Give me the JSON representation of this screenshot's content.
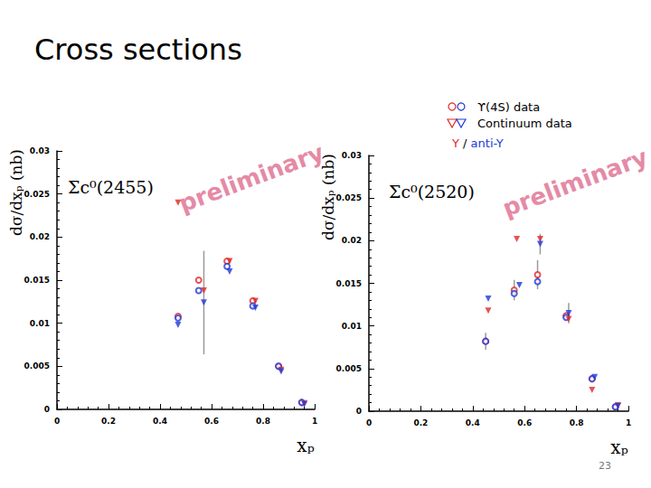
{
  "slide_title": "Cross sections",
  "page_number": 23,
  "legend_note": "Y / anti-Y",
  "chart_data": [
    {
      "type": "scatter",
      "title": "Σc⁰(2455)",
      "annotation": "preliminary",
      "x_label": "xₚ",
      "y_label": "dσ/dxₚ (nb)",
      "xlim": [
        0,
        1
      ],
      "xticks": [
        0,
        0.2,
        0.4,
        0.6,
        0.8,
        1
      ],
      "ylim": [
        0,
        0.03
      ],
      "yticks": [
        0,
        0.005,
        0.01,
        0.015,
        0.02,
        0.025,
        0.03
      ],
      "series": [
        {
          "name": "ϒ(4S) data",
          "color": "#e02828",
          "marker": "circle",
          "x": [
            0.47,
            0.55,
            0.66,
            0.76,
            0.86,
            0.95
          ],
          "values": [
            0.0108,
            0.015,
            0.0172,
            0.0126,
            0.005,
            0.0008
          ],
          "errors": [
            null,
            null,
            null,
            null,
            null,
            null
          ]
        },
        {
          "name": "ϒ(4S) data",
          "color": "#2038d8",
          "marker": "circle",
          "x": [
            0.47,
            0.55,
            0.66,
            0.76,
            0.86,
            0.95
          ],
          "values": [
            0.0106,
            0.0138,
            0.0166,
            0.012,
            0.005,
            0.0008
          ],
          "errors": [
            null,
            null,
            null,
            null,
            null,
            null
          ]
        },
        {
          "name": "Continuum data",
          "color": "#e02828",
          "marker": "triangle_down",
          "x": [
            0.47,
            0.57,
            0.67,
            0.77,
            0.87,
            0.96
          ],
          "values": [
            0.024,
            0.0138,
            0.0172,
            0.0126,
            0.0046,
            0.0007
          ],
          "errors": [
            null,
            null,
            null,
            null,
            null,
            null
          ]
        },
        {
          "name": "Continuum data",
          "color": "#2038d8",
          "marker": "triangle_down",
          "x": [
            0.47,
            0.57,
            0.67,
            0.77,
            0.87,
            0.96
          ],
          "values": [
            0.0098,
            0.0124,
            0.016,
            0.0118,
            0.0044,
            0.0006
          ],
          "errors": [
            null,
            0.006,
            null,
            null,
            null,
            null
          ]
        }
      ]
    },
    {
      "type": "scatter",
      "title": "Σc⁰(2520)",
      "annotation": "preliminary",
      "x_label": "xₚ",
      "y_label": "dσ/dxₚ (nb)",
      "xlim": [
        0,
        1
      ],
      "xticks": [
        0,
        0.2,
        0.4,
        0.6,
        0.8,
        1
      ],
      "ylim": [
        0,
        0.03
      ],
      "yticks": [
        0,
        0.005,
        0.01,
        0.015,
        0.02,
        0.025,
        0.03
      ],
      "series": [
        {
          "name": "ϒ(4S) data",
          "color": "#e02828",
          "marker": "circle",
          "x": [
            0.45,
            0.56,
            0.65,
            0.76,
            0.86,
            0.95
          ],
          "values": [
            0.0082,
            0.0142,
            0.016,
            0.0112,
            0.0038,
            0.0005
          ],
          "errors": [
            0.001,
            0.0012,
            0.0017,
            null,
            null,
            null
          ]
        },
        {
          "name": "ϒ(4S) data",
          "color": "#2038d8",
          "marker": "circle",
          "x": [
            0.45,
            0.56,
            0.65,
            0.76,
            0.86,
            0.95
          ],
          "values": [
            0.0082,
            0.0138,
            0.0152,
            0.011,
            0.0038,
            0.0005
          ],
          "errors": [
            null,
            null,
            null,
            null,
            null,
            null
          ]
        },
        {
          "name": "Continuum data",
          "color": "#e02828",
          "marker": "triangle_down",
          "x": [
            0.46,
            0.57,
            0.66,
            0.77,
            0.86,
            0.96
          ],
          "values": [
            0.0118,
            0.0202,
            0.0202,
            0.0108,
            0.0025,
            0.0007
          ],
          "errors": [
            null,
            null,
            null,
            null,
            null,
            null
          ]
        },
        {
          "name": "Continuum data",
          "color": "#2038d8",
          "marker": "triangle_down",
          "x": [
            0.46,
            0.58,
            0.66,
            0.77,
            0.87,
            0.96
          ],
          "values": [
            0.0132,
            0.0148,
            0.0196,
            0.0115,
            0.004,
            0.0006
          ],
          "errors": [
            null,
            null,
            0.0012,
            0.0012,
            null,
            null
          ]
        }
      ]
    }
  ]
}
